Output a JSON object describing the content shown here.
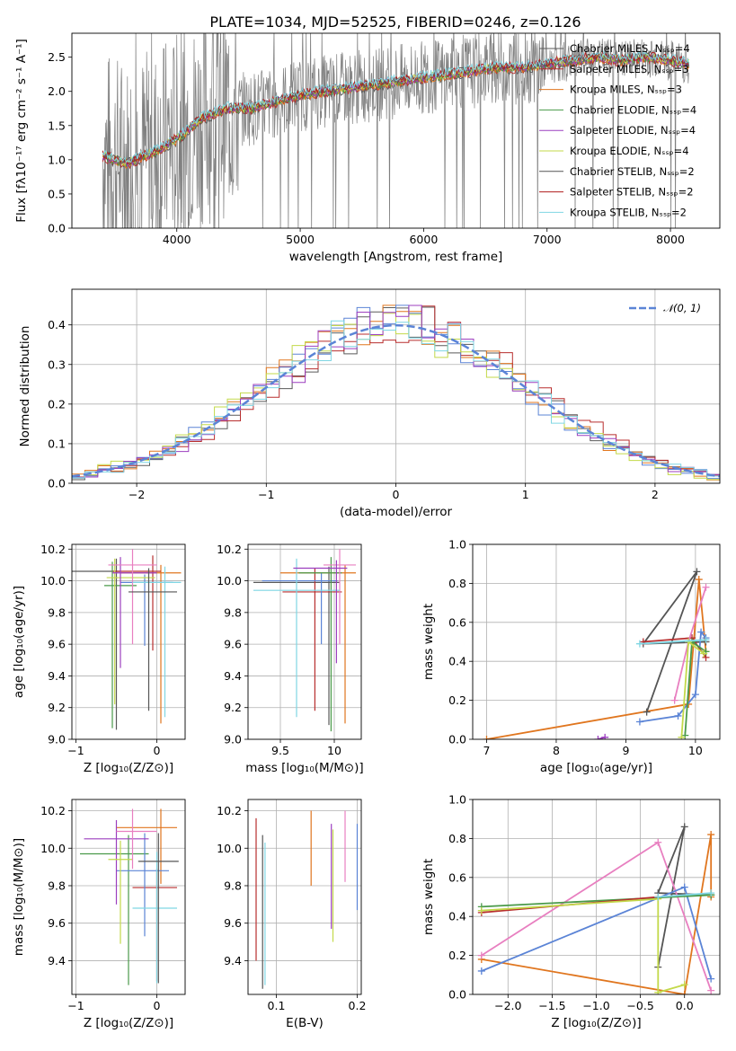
{
  "figure": {
    "title": "PLATE=1034, MJD=52525, FIBERID=0246, z=0.126"
  },
  "chart_data": [
    {
      "id": "spectrum",
      "type": "line",
      "xlabel": "wavelength [Angstrom, rest frame]",
      "ylabel": "Flux [fλ10⁻¹⁷ erg cm⁻² s⁻¹ A⁻¹]",
      "xlim": [
        3150,
        8400
      ],
      "ylim": [
        0,
        2.85
      ],
      "xticks": [
        4000,
        5000,
        6000,
        7000,
        8000
      ],
      "yticks": [
        0.0,
        0.5,
        1.0,
        1.5,
        2.0,
        2.5
      ],
      "grid": false,
      "legend_position": "top-right",
      "data_x": [
        3400,
        3600,
        3800,
        4000,
        4200,
        4400,
        4600,
        4800,
        5000,
        5200,
        5400,
        5600,
        5800,
        6000,
        6200,
        6400,
        6600,
        6800,
        7000,
        7200,
        7400,
        7600,
        7800,
        8000,
        8150
      ],
      "data_y": [
        1.05,
        0.95,
        1.1,
        1.3,
        1.6,
        1.75,
        1.75,
        1.85,
        1.95,
        2.0,
        2.05,
        2.1,
        2.15,
        2.2,
        2.25,
        2.3,
        2.35,
        2.35,
        2.4,
        2.45,
        2.5,
        2.45,
        2.5,
        2.45,
        2.4
      ],
      "models": [
        {
          "name": "Chabrier MILES, N$_{SSP}$=4",
          "color": "#5a5a5a"
        },
        {
          "name": "Salpeter MILES, N$_{SSP}$=3",
          "color": "#b82e2e"
        },
        {
          "name": "Kroupa MILES, N$_{SSP}$=3",
          "color": "#e0761f"
        },
        {
          "name": "Chabrier ELODIE, N$_{SSP}$=4",
          "color": "#4a9a4a"
        },
        {
          "name": "Salpeter ELODIE, N$_{SSP}$=4",
          "color": "#9c3fbf"
        },
        {
          "name": "Kroupa ELODIE, N$_{SSP}$=4",
          "color": "#c3d94a"
        },
        {
          "name": "Chabrier STELIB, N$_{SSP}$=2",
          "color": "#555555"
        },
        {
          "name": "Salpeter STELIB, N$_{SSP}$=2",
          "color": "#b01c1c"
        },
        {
          "name": "Kroupa STELIB, N$_{SSP}$=2",
          "color": "#7fd6e3"
        }
      ]
    },
    {
      "id": "residuals",
      "type": "histogram",
      "xlabel": "(data-model)/error",
      "ylabel": "Normed distribution",
      "xlim": [
        -2.5,
        2.5
      ],
      "ylim": [
        0,
        0.49
      ],
      "xticks": [
        -2,
        -1,
        0,
        1,
        2
      ],
      "yticks": [
        0.0,
        0.1,
        0.2,
        0.3,
        0.4
      ],
      "grid": true,
      "legend_position": "top-right",
      "curve_label": "𝒩(0, 1)",
      "curve_color": "#5b84d6",
      "bin_width": 0.1,
      "series": [
        {
          "color": "#5a5a5a",
          "offset": 0.012
        },
        {
          "color": "#e0761f",
          "offset": -0.008
        },
        {
          "color": "#b82e2e",
          "offset": 0.02
        },
        {
          "color": "#5b84d6",
          "offset": -0.015
        },
        {
          "color": "#c3d94a",
          "offset": -0.02
        },
        {
          "color": "#9c3fbf",
          "offset": 0.005
        },
        {
          "color": "#7fd6e3",
          "offset": 0.0
        }
      ]
    },
    {
      "id": "age-vs-Z",
      "type": "scatter",
      "xlabel": "Z [log₁₀(Z/Z⊙)]",
      "ylabel": "age  [log₁₀(age/yr)]",
      "xlim": [
        -1.05,
        0.35
      ],
      "ylim": [
        9.0,
        10.23
      ],
      "xticks": [
        -1,
        0
      ],
      "yticks": [
        9.0,
        9.2,
        9.4,
        9.6,
        9.8,
        10.0,
        10.2
      ],
      "grid": true,
      "points": [
        {
          "x": -0.5,
          "y": 10.06,
          "xerr": [
            0.55,
            0.05
          ],
          "yerr": [
            1.0,
            0.08
          ],
          "color": "#5a5a5a"
        },
        {
          "x": 0.05,
          "y": 10.05,
          "xerr": [
            0.5,
            0.25
          ],
          "yerr": [
            0.95,
            0.05
          ],
          "color": "#e0761f"
        },
        {
          "x": -0.05,
          "y": 10.06,
          "xerr": [
            0.5,
            0.1
          ],
          "yerr": [
            0.5,
            0.1
          ],
          "color": "#b82e2e"
        },
        {
          "x": -0.15,
          "y": 9.99,
          "xerr": [
            0.3,
            0.35
          ],
          "yerr": [
            0.4,
            0.05
          ],
          "color": "#5b84d6"
        },
        {
          "x": -0.55,
          "y": 9.97,
          "xerr": [
            0.1,
            0.3
          ],
          "yerr": [
            0.9,
            0.15
          ],
          "color": "#4a9a4a"
        },
        {
          "x": -0.52,
          "y": 10.02,
          "xerr": [
            0.1,
            0.5
          ],
          "yerr": [
            0.8,
            0.12
          ],
          "color": "#c3d94a"
        },
        {
          "x": -0.45,
          "y": 10.05,
          "xerr": [
            0.1,
            0.45
          ],
          "yerr": [
            0.6,
            0.1
          ],
          "color": "#9c3fbf"
        },
        {
          "x": -0.3,
          "y": 10.1,
          "xerr": [
            0.3,
            0.3
          ],
          "yerr": [
            0.5,
            0.1
          ],
          "color": "#e87fc0"
        },
        {
          "x": 0.1,
          "y": 9.99,
          "xerr": [
            0.4,
            0.2
          ],
          "yerr": [
            0.85,
            0.1
          ],
          "color": "#7fd6e3"
        },
        {
          "x": -0.1,
          "y": 9.93,
          "xerr": [
            0.25,
            0.35
          ],
          "yerr": [
            0.75,
            0.15
          ],
          "color": "#555555"
        }
      ]
    },
    {
      "id": "age-vs-mass",
      "type": "scatter",
      "xlabel": "mass [log₁₀(M/M⊙)]",
      "ylabel": "",
      "xlim": [
        9.2,
        10.25
      ],
      "ylim": [
        9.0,
        10.23
      ],
      "xticks": [
        9.5,
        10.0
      ],
      "yticks": [
        9.0,
        9.2,
        9.4,
        9.6,
        9.8,
        10.0,
        10.2
      ],
      "grid": true,
      "points": [
        {
          "x": 9.95,
          "y": 9.99,
          "xerr": [
            0.7,
            0.1
          ],
          "yerr": [
            0.9,
            0.1
          ],
          "color": "#5a5a5a"
        },
        {
          "x": 10.1,
          "y": 10.05,
          "xerr": [
            0.6,
            0.1
          ],
          "yerr": [
            0.95,
            0.05
          ],
          "color": "#e0761f"
        },
        {
          "x": 9.82,
          "y": 9.93,
          "xerr": [
            0.3,
            0.25
          ],
          "yerr": [
            0.75,
            0.15
          ],
          "color": "#b82e2e"
        },
        {
          "x": 9.88,
          "y": 10.0,
          "xerr": [
            0.55,
            0.15
          ],
          "yerr": [
            0.4,
            0.05
          ],
          "color": "#5b84d6"
        },
        {
          "x": 9.97,
          "y": 10.05,
          "xerr": [
            0.3,
            0.1
          ],
          "yerr": [
            1.0,
            0.1
          ],
          "color": "#4a9a4a"
        },
        {
          "x": 10.05,
          "y": 10.1,
          "xerr": [
            0.15,
            0.15
          ],
          "yerr": [
            0.5,
            0.1
          ],
          "color": "#e87fc0"
        },
        {
          "x": 9.65,
          "y": 9.94,
          "xerr": [
            0.4,
            0.4
          ],
          "yerr": [
            0.8,
            0.2
          ],
          "color": "#7fd6e3"
        },
        {
          "x": 10.02,
          "y": 10.08,
          "xerr": [
            0.4,
            0.1
          ],
          "yerr": [
            0.6,
            0.05
          ],
          "color": "#9c3fbf"
        }
      ]
    },
    {
      "id": "weight-vs-age",
      "type": "line",
      "xlabel": "age  [log₁₀(age/yr)]",
      "ylabel": "mass weight",
      "xlim": [
        6.8,
        10.35
      ],
      "ylim": [
        0.0,
        1.0
      ],
      "xticks": [
        7,
        8,
        9,
        10
      ],
      "yticks": [
        0.0,
        0.2,
        0.4,
        0.6,
        0.8,
        1.0
      ],
      "grid": true,
      "series": [
        {
          "color": "#e0761f",
          "x": [
            7.0,
            9.9,
            10.05,
            10.15
          ],
          "y": [
            0.0,
            0.18,
            0.82,
            0.45
          ]
        },
        {
          "color": "#555555",
          "x": [
            9.3,
            10.02,
            9.25,
            10.15
          ],
          "y": [
            0.14,
            0.86,
            0.49,
            0.5
          ]
        },
        {
          "color": "#5b84d6",
          "x": [
            9.2,
            9.75,
            10.0,
            10.08,
            10.15
          ],
          "y": [
            0.09,
            0.12,
            0.23,
            0.55,
            0.52
          ]
        },
        {
          "color": "#b82e2e",
          "x": [
            9.25,
            9.95,
            10.15
          ],
          "y": [
            0.5,
            0.52,
            0.42
          ]
        },
        {
          "color": "#e87fc0",
          "x": [
            9.7,
            9.9,
            10.15
          ],
          "y": [
            0.2,
            0.5,
            0.78
          ]
        },
        {
          "color": "#4a9a4a",
          "x": [
            9.85,
            9.95,
            10.15
          ],
          "y": [
            0.02,
            0.5,
            0.45
          ]
        },
        {
          "color": "#c3d94a",
          "x": [
            9.8,
            9.9,
            10.12
          ],
          "y": [
            0.01,
            0.5,
            0.44
          ]
        },
        {
          "color": "#7fd6e3",
          "x": [
            9.2,
            10.15
          ],
          "y": [
            0.49,
            0.51
          ]
        },
        {
          "color": "#9c3fbf",
          "x": [
            8.6,
            8.7
          ],
          "y": [
            0.0,
            0.01
          ]
        }
      ]
    },
    {
      "id": "mass-vs-Z",
      "type": "scatter",
      "xlabel": "Z [log₁₀(Z/Z⊙)]",
      "ylabel": "mass [log₁₀(M/M⊙)]",
      "xlim": [
        -1.05,
        0.35
      ],
      "ylim": [
        9.22,
        10.26
      ],
      "xticks": [
        -1,
        0
      ],
      "yticks": [
        9.4,
        9.6,
        9.8,
        10.0,
        10.2
      ],
      "grid": true,
      "points": [
        {
          "x": -0.35,
          "y": 9.97,
          "xerr": [
            0.6,
            0.25
          ],
          "yerr": [
            0.7,
            0.1
          ],
          "color": "#4a9a4a"
        },
        {
          "x": 0.05,
          "y": 10.11,
          "xerr": [
            0.55,
            0.2
          ],
          "yerr": [
            0.3,
            0.1
          ],
          "color": "#e0761f"
        },
        {
          "x": 0.0,
          "y": 9.79,
          "xerr": [
            0.3,
            0.25
          ],
          "yerr": [
            0.5,
            0.1
          ],
          "color": "#b82e2e"
        },
        {
          "x": -0.15,
          "y": 9.88,
          "xerr": [
            0.35,
            0.3
          ],
          "yerr": [
            0.35,
            0.2
          ],
          "color": "#5b84d6"
        },
        {
          "x": -0.5,
          "y": 10.05,
          "xerr": [
            0.4,
            0.4
          ],
          "yerr": [
            0.35,
            0.1
          ],
          "color": "#9c3fbf"
        },
        {
          "x": -0.45,
          "y": 9.94,
          "xerr": [
            0.15,
            0.15
          ],
          "yerr": [
            0.45,
            0.1
          ],
          "color": "#c3d94a"
        },
        {
          "x": -0.3,
          "y": 10.09,
          "xerr": [
            0.2,
            0.3
          ],
          "yerr": [
            0.2,
            0.12
          ],
          "color": "#e87fc0"
        },
        {
          "x": 0.0,
          "y": 9.68,
          "xerr": [
            0.3,
            0.25
          ],
          "yerr": [
            0.4,
            0.3
          ],
          "color": "#7fd6e3"
        },
        {
          "x": 0.02,
          "y": 9.93,
          "xerr": [
            0.25,
            0.25
          ],
          "yerr": [
            0.65,
            0.15
          ],
          "color": "#555555"
        }
      ]
    },
    {
      "id": "mass-vs-EBV",
      "type": "scatter",
      "xlabel": "E(B-V)",
      "ylabel": "",
      "xlim": [
        0.065,
        0.205
      ],
      "ylim": [
        9.22,
        10.26
      ],
      "xticks": [
        0.1,
        0.2
      ],
      "yticks": [
        9.4,
        9.6,
        9.8,
        10.0,
        10.2
      ],
      "grid": true,
      "points": [
        {
          "x": 0.075,
          "y": 9.78,
          "yerr": [
            0.38,
            0.38
          ],
          "color": "#b82e2e"
        },
        {
          "x": 0.083,
          "y": 9.65,
          "yerr": [
            0.4,
            0.42
          ],
          "color": "#555555"
        },
        {
          "x": 0.086,
          "y": 9.65,
          "yerr": [
            0.38,
            0.38
          ],
          "color": "#7fd6e3"
        },
        {
          "x": 0.143,
          "y": 10.0,
          "yerr": [
            0.2,
            0.2
          ],
          "color": "#e0761f"
        },
        {
          "x": 0.168,
          "y": 9.85,
          "yerr": [
            0.28,
            0.28
          ],
          "color": "#9c3fbf"
        },
        {
          "x": 0.17,
          "y": 9.8,
          "yerr": [
            0.3,
            0.3
          ],
          "color": "#c3d94a"
        },
        {
          "x": 0.185,
          "y": 10.0,
          "yerr": [
            0.18,
            0.2
          ],
          "color": "#e87fc0"
        },
        {
          "x": 0.2,
          "y": 9.9,
          "yerr": [
            0.23,
            0.23
          ],
          "color": "#5b84d6"
        }
      ]
    },
    {
      "id": "weight-vs-Z",
      "type": "line",
      "xlabel": "Z [log₁₀(Z/Z⊙)]",
      "ylabel": "mass weight",
      "xlim": [
        -2.4,
        0.4
      ],
      "ylim": [
        0.0,
        1.0
      ],
      "xticks": [
        -2.0,
        -1.5,
        -1.0,
        -0.5,
        0.0
      ],
      "yticks": [
        0.0,
        0.2,
        0.4,
        0.6,
        0.8,
        1.0
      ],
      "grid": true,
      "series": [
        {
          "color": "#e0761f",
          "x": [
            -2.3,
            0.0,
            0.3,
            0.3
          ],
          "y": [
            0.18,
            0.0,
            0.82,
            0.5
          ]
        },
        {
          "color": "#555555",
          "x": [
            -0.3,
            0.0,
            -0.3,
            0.3
          ],
          "y": [
            0.14,
            0.86,
            0.52,
            0.51
          ]
        },
        {
          "color": "#e87fc0",
          "x": [
            -2.3,
            -0.3,
            0.3
          ],
          "y": [
            0.2,
            0.78,
            0.02
          ]
        },
        {
          "color": "#5b84d6",
          "x": [
            -2.3,
            0.0,
            0.3
          ],
          "y": [
            0.12,
            0.55,
            0.08
          ]
        },
        {
          "color": "#4a9a4a",
          "x": [
            -2.3,
            0.3
          ],
          "y": [
            0.45,
            0.51
          ]
        },
        {
          "color": "#b82e2e",
          "x": [
            -2.3,
            -0.3
          ],
          "y": [
            0.42,
            0.5
          ]
        },
        {
          "color": "#c3d94a",
          "x": [
            -2.3,
            -0.3,
            -0.3,
            0.0
          ],
          "y": [
            0.43,
            0.49,
            0.01,
            0.05
          ]
        },
        {
          "color": "#7fd6e3",
          "x": [
            -0.3,
            0.3
          ],
          "y": [
            0.5,
            0.52
          ]
        }
      ]
    }
  ]
}
